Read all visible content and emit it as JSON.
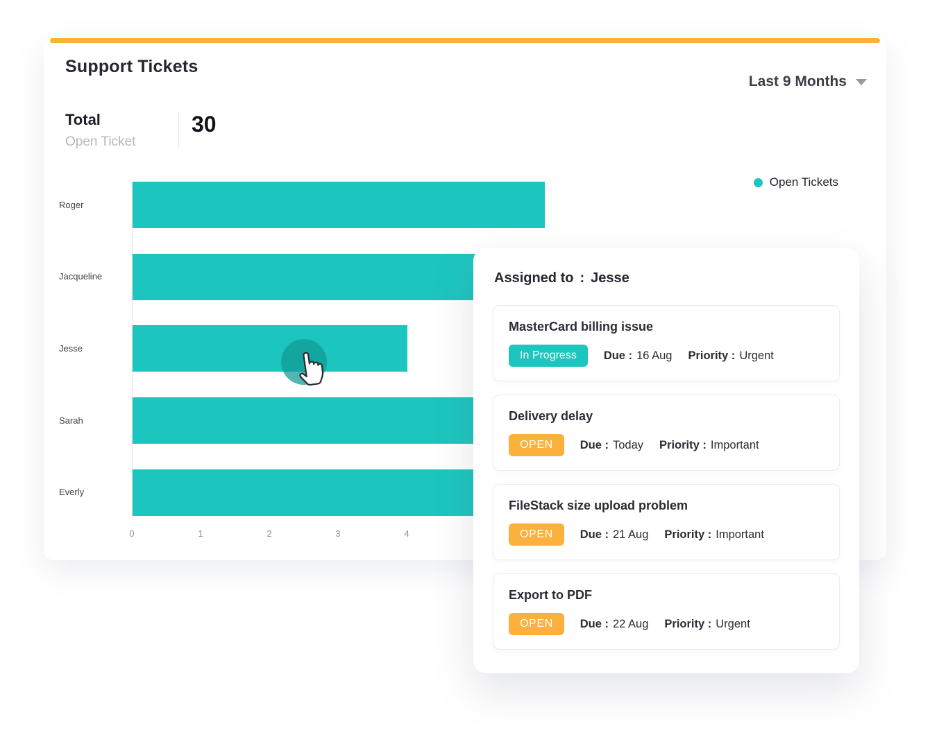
{
  "theme": {
    "accent_bar": "#F9B234",
    "teal": "#1CC5BE",
    "amber": "#FBB13C",
    "text_dark": "#23232B",
    "text_grey": "#B6B6BE",
    "axis_grey": "#8E8E96"
  },
  "header": {
    "title": "Support Tickets",
    "period_selector": "Last 9 Months"
  },
  "summary": {
    "total_label": "Total",
    "total_sublabel": "Open Ticket",
    "total_value": "30"
  },
  "legend": {
    "label": "Open Tickets"
  },
  "chart_data": {
    "type": "bar",
    "orientation": "horizontal",
    "title": "Support Tickets",
    "series_name": "Open Tickets",
    "categories": [
      "Roger",
      "Jacqueline",
      "Jesse",
      "Sarah",
      "Everly"
    ],
    "values": [
      6,
      7,
      4,
      7,
      6
    ],
    "x_ticks": [
      "0",
      "1",
      "2",
      "3",
      "4"
    ],
    "xlim": [
      0,
      6.5
    ],
    "bar_color": "#1CC5BE",
    "grid": false,
    "legend_position": "top-right",
    "highlighted_category": "Jesse"
  },
  "tooltip": {
    "assigned_label": "Assigned to",
    "colon": ":",
    "assigned_value": "Jesse",
    "tickets": [
      {
        "title": "MasterCard billing issue",
        "status": "In Progress",
        "status_key": "in-progress",
        "due_label": "Due :",
        "due_value": "16 Aug",
        "priority_label": "Priority :",
        "priority_value": "Urgent"
      },
      {
        "title": "Delivery delay",
        "status": "OPEN",
        "status_key": "open",
        "due_label": "Due :",
        "due_value": "Today",
        "priority_label": "Priority :",
        "priority_value": "Important"
      },
      {
        "title": "FileStack size upload problem",
        "status": "OPEN",
        "status_key": "open",
        "due_label": "Due :",
        "due_value": "21 Aug",
        "priority_label": "Priority :",
        "priority_value": "Important"
      },
      {
        "title": "Export to PDF",
        "status": "OPEN",
        "status_key": "open",
        "due_label": "Due :",
        "due_value": "22 Aug",
        "priority_label": "Priority :",
        "priority_value": "Urgent"
      }
    ]
  }
}
